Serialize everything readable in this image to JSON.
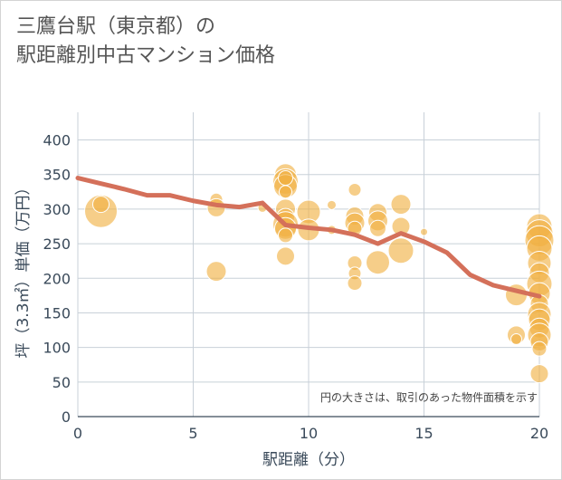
{
  "title_line1": "三鷹台駅（東京都）の",
  "title_line2": "駅距離別中古マンション価格",
  "colors": {
    "line": "#d4705a",
    "bubble": "#f0b040",
    "grid": "#c8d0d8"
  },
  "chart_data": {
    "type": "scatter",
    "xlabel": "駅距離（分）",
    "ylabel": "坪（3.3㎡）単価（万円）",
    "xlim": [
      0,
      20
    ],
    "ylim": [
      0,
      440
    ],
    "x_ticks": [
      "0",
      "5",
      "10",
      "15",
      "20"
    ],
    "y_ticks": [
      "0",
      "50",
      "100",
      "150",
      "200",
      "250",
      "300",
      "350",
      "400"
    ],
    "annotation": "円の大きさは、取引のあった物件面積を示す",
    "line_series": {
      "x": [
        0,
        1,
        2,
        3,
        4,
        5,
        6,
        7,
        8,
        9,
        10,
        11,
        12,
        13,
        14,
        15,
        16,
        17,
        18,
        19,
        20
      ],
      "y": [
        345,
        337,
        329,
        320,
        320,
        312,
        306,
        303,
        309,
        277,
        273,
        270,
        263,
        250,
        265,
        253,
        237,
        205,
        190,
        182,
        174
      ]
    },
    "bubbles": [
      {
        "x": 1,
        "y": 297,
        "s": 18
      },
      {
        "x": 1,
        "y": 307,
        "s": 9
      },
      {
        "x": 6,
        "y": 314,
        "s": 7
      },
      {
        "x": 6,
        "y": 302,
        "s": 10
      },
      {
        "x": 6,
        "y": 210,
        "s": 11
      },
      {
        "x": 8,
        "y": 302,
        "s": 5
      },
      {
        "x": 9,
        "y": 350,
        "s": 12
      },
      {
        "x": 9,
        "y": 340,
        "s": 14
      },
      {
        "x": 9,
        "y": 333,
        "s": 13
      },
      {
        "x": 9,
        "y": 345,
        "s": 8
      },
      {
        "x": 9,
        "y": 325,
        "s": 7
      },
      {
        "x": 9,
        "y": 300,
        "s": 11
      },
      {
        "x": 9,
        "y": 288,
        "s": 10
      },
      {
        "x": 9,
        "y": 278,
        "s": 14
      },
      {
        "x": 9,
        "y": 272,
        "s": 12
      },
      {
        "x": 9,
        "y": 262,
        "s": 8
      },
      {
        "x": 9,
        "y": 232,
        "s": 10
      },
      {
        "x": 10,
        "y": 296,
        "s": 13
      },
      {
        "x": 10,
        "y": 270,
        "s": 12
      },
      {
        "x": 11,
        "y": 306,
        "s": 5
      },
      {
        "x": 11,
        "y": 270,
        "s": 5
      },
      {
        "x": 12,
        "y": 328,
        "s": 7
      },
      {
        "x": 12,
        "y": 290,
        "s": 10
      },
      {
        "x": 12,
        "y": 280,
        "s": 11
      },
      {
        "x": 12,
        "y": 272,
        "s": 8
      },
      {
        "x": 12,
        "y": 222,
        "s": 8
      },
      {
        "x": 12,
        "y": 207,
        "s": 7
      },
      {
        "x": 12,
        "y": 193,
        "s": 8
      },
      {
        "x": 13,
        "y": 295,
        "s": 10
      },
      {
        "x": 13,
        "y": 283,
        "s": 11
      },
      {
        "x": 13,
        "y": 272,
        "s": 9
      },
      {
        "x": 13,
        "y": 223,
        "s": 13
      },
      {
        "x": 14,
        "y": 307,
        "s": 11
      },
      {
        "x": 14,
        "y": 275,
        "s": 10
      },
      {
        "x": 14,
        "y": 240,
        "s": 14
      },
      {
        "x": 15,
        "y": 267,
        "s": 4
      },
      {
        "x": 19,
        "y": 176,
        "s": 12
      },
      {
        "x": 19,
        "y": 118,
        "s": 10
      },
      {
        "x": 19,
        "y": 112,
        "s": 6
      },
      {
        "x": 20,
        "y": 275,
        "s": 14
      },
      {
        "x": 20,
        "y": 265,
        "s": 15
      },
      {
        "x": 20,
        "y": 255,
        "s": 16
      },
      {
        "x": 20,
        "y": 243,
        "s": 14
      },
      {
        "x": 20,
        "y": 222,
        "s": 13
      },
      {
        "x": 20,
        "y": 208,
        "s": 11
      },
      {
        "x": 20,
        "y": 192,
        "s": 14
      },
      {
        "x": 20,
        "y": 178,
        "s": 12
      },
      {
        "x": 20,
        "y": 163,
        "s": 10
      },
      {
        "x": 20,
        "y": 148,
        "s": 13
      },
      {
        "x": 20,
        "y": 140,
        "s": 12
      },
      {
        "x": 20,
        "y": 128,
        "s": 11
      },
      {
        "x": 20,
        "y": 118,
        "s": 13
      },
      {
        "x": 20,
        "y": 108,
        "s": 10
      },
      {
        "x": 20,
        "y": 98,
        "s": 8
      },
      {
        "x": 20,
        "y": 62,
        "s": 10
      }
    ]
  }
}
